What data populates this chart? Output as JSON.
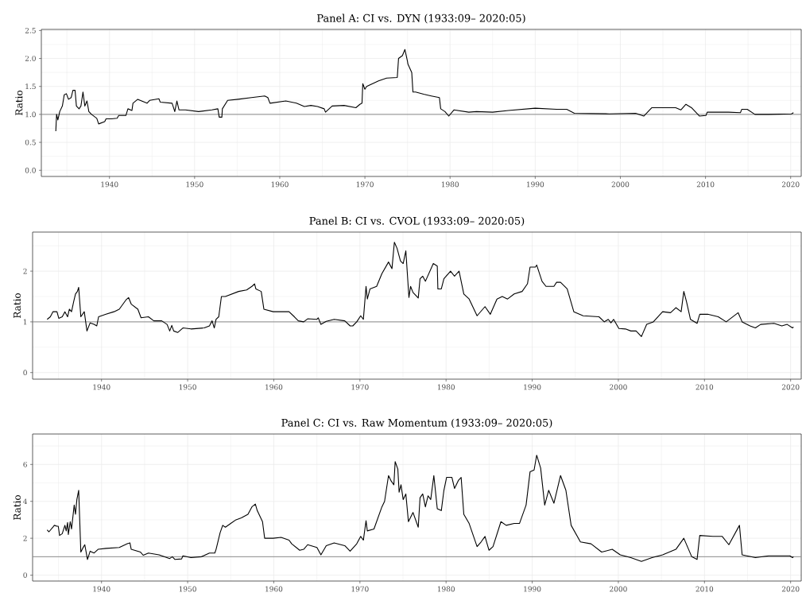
{
  "chart_data": [
    {
      "type": "line",
      "title": "Panel A: CI vs. DYN (1933:09– 2020:05)",
      "ylabel": "Ratio",
      "x": [
        1933.7,
        1933.79,
        1933.94,
        1934.16,
        1934.47,
        1934.69,
        1934.94,
        1935.19,
        1935.5,
        1935.71,
        1935.96,
        1936.12,
        1936.43,
        1936.65,
        1936.89,
        1937.11,
        1937.36,
        1937.58,
        1937.89,
        1938.51,
        1938.73,
        1939.44,
        1939.6,
        1940.22,
        1940.9,
        1941.09,
        1941.93,
        1942.17,
        1942.64,
        1942.76,
        1943.32,
        1944.41,
        1944.72,
        1945.81,
        1945.96,
        1947.36,
        1947.67,
        1947.92,
        1948.17,
        1948.91,
        1950.47,
        1952.02,
        1952.73,
        1952.89,
        1953.2,
        1953.26,
        1953.88,
        1955.12,
        1956.68,
        1958.23,
        1958.6,
        1958.85,
        1960.71,
        1961.96,
        1962.89,
        1963.66,
        1964.44,
        1965.22,
        1965.37,
        1966.15,
        1967.55,
        1968.94,
        1969.41,
        1969.66,
        1969.75,
        1970.0,
        1970.2,
        1971.6,
        1972.55,
        1973.8,
        1973.95,
        1974.4,
        1974.7,
        1975.0,
        1975.05,
        1975.5,
        1975.64,
        1975.95,
        1976.9,
        1977.8,
        1978.75,
        1978.9,
        1979.4,
        1979.85,
        1980.45,
        1982.2,
        1983.1,
        1985.0,
        1986.85,
        1990.0,
        1992.5,
        1993.7,
        1994.6,
        1998.7,
        2001.8,
        2002.75,
        2003.7,
        2006.5,
        2007.1,
        2007.7,
        2008.35,
        2009.3,
        2010.05,
        2010.2,
        2012.7,
        2014.1,
        2014.25,
        2014.9,
        2015.8,
        2017.4,
        2020.1,
        2020.33
      ],
      "series": [
        {
          "color": "#000000",
          "values": [
            0.7,
            1.0,
            0.9,
            1.05,
            1.15,
            1.35,
            1.37,
            1.27,
            1.3,
            1.43,
            1.43,
            1.15,
            1.1,
            1.15,
            1.4,
            1.15,
            1.24,
            1.05,
            1.0,
            0.93,
            0.83,
            0.87,
            0.92,
            0.92,
            0.93,
            0.98,
            0.98,
            1.1,
            1.07,
            1.2,
            1.27,
            1.2,
            1.25,
            1.28,
            1.22,
            1.2,
            1.05,
            1.24,
            1.08,
            1.08,
            1.05,
            1.08,
            1.1,
            0.95,
            0.95,
            1.1,
            1.25,
            1.27,
            1.3,
            1.33,
            1.3,
            1.2,
            1.24,
            1.2,
            1.14,
            1.16,
            1.14,
            1.1,
            1.04,
            1.15,
            1.16,
            1.12,
            1.18,
            1.2,
            1.55,
            1.45,
            1.5,
            1.6,
            1.65,
            1.66,
            2.0,
            2.05,
            2.16,
            1.95,
            1.9,
            1.75,
            1.4,
            1.4,
            1.36,
            1.33,
            1.3,
            1.1,
            1.05,
            0.97,
            1.08,
            1.04,
            1.05,
            1.04,
            1.07,
            1.11,
            1.09,
            1.09,
            1.02,
            1.01,
            1.02,
            0.97,
            1.12,
            1.12,
            1.08,
            1.18,
            1.12,
            0.97,
            0.98,
            1.04,
            1.04,
            1.03,
            1.09,
            1.09,
            1.0,
            1.0,
            1.01,
            1.03
          ]
        }
      ],
      "xlim": [
        1932.0,
        2021.24
      ],
      "ylim": [
        -0.11,
        2.52
      ],
      "xticks": [
        1940,
        1950,
        1960,
        1970,
        1980,
        1990,
        2000,
        2010,
        2020
      ],
      "yticks": [
        {
          "value": 0,
          "label": "0.0"
        },
        {
          "value": 0.5,
          "label": "0.5"
        },
        {
          "value": 1,
          "label": "1.0"
        },
        {
          "value": 1.5,
          "label": "1.5"
        },
        {
          "value": 2,
          "label": "2.0"
        },
        {
          "value": 2.5,
          "label": "2.5"
        }
      ],
      "grid": true,
      "ref_lines": [
        {
          "axis": "y",
          "value": 1,
          "color": "#8c8c8c"
        }
      ]
    },
    {
      "type": "line",
      "title": "Panel B: CI vs. CVOL (1933:09– 2020:05)",
      "ylabel": "Ratio",
      "x": [
        1933.69,
        1934.06,
        1934.36,
        1934.83,
        1935.04,
        1935.44,
        1935.75,
        1936.06,
        1936.27,
        1936.52,
        1936.77,
        1936.98,
        1937.2,
        1937.35,
        1937.6,
        1938.0,
        1938.31,
        1938.68,
        1939.14,
        1939.45,
        1939.66,
        1940.52,
        1941.45,
        1942.06,
        1942.83,
        1943.14,
        1943.45,
        1944.22,
        1944.59,
        1945.45,
        1946.07,
        1946.99,
        1947.61,
        1947.92,
        1948.16,
        1948.38,
        1948.84,
        1949.45,
        1950.38,
        1951.92,
        1952.53,
        1952.84,
        1953.09,
        1953.3,
        1953.61,
        1953.92,
        1954.38,
        1955.92,
        1956.85,
        1957.46,
        1957.77,
        1957.92,
        1958.54,
        1958.85,
        1959.93,
        1961.77,
        1962.39,
        1962.85,
        1963.47,
        1963.93,
        1965.01,
        1965.16,
        1965.47,
        1966.09,
        1967.01,
        1968.24,
        1968.86,
        1969.17,
        1969.63,
        1970.09,
        1970.4,
        1970.71,
        1970.86,
        1971.17,
        1971.94,
        1972.55,
        1973.32,
        1973.72,
        1974.0,
        1974.31,
        1974.71,
        1975.02,
        1975.33,
        1975.69,
        1975.88,
        1976.16,
        1976.77,
        1976.98,
        1977.29,
        1977.6,
        1978.52,
        1978.98,
        1979.05,
        1979.45,
        1979.75,
        1980.52,
        1980.98,
        1981.51,
        1982.06,
        1982.68,
        1983.6,
        1984.52,
        1985.14,
        1985.91,
        1986.52,
        1987.14,
        1987.91,
        1988.83,
        1989.45,
        1989.75,
        1990.37,
        1990.52,
        1991.14,
        1991.6,
        1992.52,
        1992.83,
        1993.29,
        1994.06,
        1994.83,
        1995.91,
        1997.75,
        1998.37,
        1998.83,
        1999.14,
        1999.45,
        2000.06,
        2000.83,
        2001.45,
        2002.06,
        2002.68,
        2003.29,
        2004.06,
        2005.14,
        2006.06,
        2006.68,
        2007.29,
        2007.6,
        2007.91,
        2008.37,
        2009.14,
        2009.45,
        2010.37,
        2011.6,
        2012.52,
        2013.91,
        2014.37,
        2015.29,
        2015.91,
        2016.52,
        2018.06,
        2018.98,
        2019.6,
        2020.22,
        2020.33
      ],
      "series": [
        {
          "color": "#000000",
          "values": [
            1.05,
            1.1,
            1.2,
            1.2,
            1.07,
            1.1,
            1.2,
            1.1,
            1.25,
            1.2,
            1.4,
            1.55,
            1.6,
            1.68,
            1.1,
            1.2,
            0.82,
            0.98,
            0.95,
            0.92,
            1.1,
            1.15,
            1.2,
            1.25,
            1.43,
            1.48,
            1.35,
            1.25,
            1.08,
            1.1,
            1.02,
            1.02,
            0.95,
            0.82,
            0.93,
            0.82,
            0.79,
            0.88,
            0.86,
            0.88,
            0.92,
            1.02,
            0.88,
            1.05,
            1.1,
            1.5,
            1.5,
            1.6,
            1.63,
            1.7,
            1.75,
            1.65,
            1.6,
            1.25,
            1.2,
            1.2,
            1.1,
            1.02,
            1.0,
            1.06,
            1.05,
            1.08,
            0.95,
            1.01,
            1.05,
            1.02,
            0.92,
            0.92,
            1.0,
            1.12,
            1.05,
            1.7,
            1.45,
            1.65,
            1.7,
            1.95,
            2.18,
            2.05,
            2.57,
            2.45,
            2.2,
            2.15,
            2.4,
            1.48,
            1.7,
            1.58,
            1.47,
            1.85,
            1.9,
            1.8,
            2.15,
            2.1,
            1.65,
            1.65,
            1.85,
            2.0,
            1.9,
            2.0,
            1.55,
            1.45,
            1.12,
            1.3,
            1.15,
            1.45,
            1.5,
            1.45,
            1.55,
            1.6,
            1.75,
            2.08,
            2.08,
            2.12,
            1.8,
            1.7,
            1.7,
            1.78,
            1.78,
            1.65,
            1.2,
            1.12,
            1.1,
            1.0,
            1.05,
            0.98,
            1.05,
            0.87,
            0.86,
            0.82,
            0.82,
            0.71,
            0.95,
            1.0,
            1.2,
            1.18,
            1.28,
            1.2,
            1.6,
            1.4,
            1.05,
            0.97,
            1.15,
            1.15,
            1.1,
            1.0,
            1.18,
            1.0,
            0.92,
            0.88,
            0.95,
            0.97,
            0.92,
            0.95,
            0.88,
            0.9
          ]
        }
      ],
      "xlim": [
        1932.0,
        2021.23
      ],
      "ylim": [
        -0.13,
        2.77
      ],
      "xticks": [
        1940,
        1950,
        1960,
        1970,
        1980,
        1990,
        2000,
        2010,
        2020
      ],
      "yticks": [
        0,
        1,
        2
      ],
      "grid": true,
      "ref_lines": [
        {
          "axis": "y",
          "value": 1,
          "color": "#8c8c8c"
        }
      ]
    },
    {
      "type": "line",
      "title": "Panel C: CI vs. Raw Momentum (1933:09– 2020:05)",
      "ylabel": "Ratio",
      "x": [
        1933.69,
        1933.9,
        1934.36,
        1934.52,
        1934.83,
        1934.98,
        1935.13,
        1935.44,
        1935.75,
        1935.9,
        1936.06,
        1936.15,
        1936.37,
        1936.52,
        1936.83,
        1936.98,
        1937.14,
        1937.35,
        1937.6,
        1937.81,
        1938.06,
        1938.37,
        1938.68,
        1939.14,
        1939.6,
        1940.52,
        1942.06,
        1942.99,
        1943.3,
        1943.45,
        1944.53,
        1944.84,
        1945.45,
        1946.68,
        1947.92,
        1948.22,
        1948.53,
        1949.3,
        1949.45,
        1950.38,
        1951.61,
        1952.53,
        1953.15,
        1953.3,
        1953.77,
        1954.07,
        1954.38,
        1955.0,
        1955.61,
        1956.23,
        1957.0,
        1957.46,
        1957.86,
        1958.08,
        1958.69,
        1958.94,
        1959.93,
        1960.85,
        1961.77,
        1962.08,
        1963.01,
        1963.47,
        1963.93,
        1965.01,
        1965.47,
        1966.09,
        1967.01,
        1968.24,
        1968.86,
        1969.63,
        1970.09,
        1970.4,
        1970.71,
        1970.86,
        1971.63,
        1972.55,
        1972.86,
        1973.32,
        1973.63,
        1973.94,
        1974.09,
        1974.4,
        1974.55,
        1974.77,
        1975.02,
        1975.33,
        1975.63,
        1976.16,
        1976.77,
        1976.98,
        1977.29,
        1977.6,
        1977.91,
        1978.22,
        1978.58,
        1978.98,
        1979.45,
        1979.75,
        1980.06,
        1980.68,
        1980.98,
        1981.45,
        1981.75,
        1982.06,
        1982.68,
        1983.6,
        1984.06,
        1984.52,
        1984.98,
        1985.45,
        1986.37,
        1986.98,
        1987.91,
        1988.52,
        1989.29,
        1989.75,
        1990.22,
        1990.52,
        1990.98,
        1991.45,
        1991.91,
        1992.52,
        1993.29,
        1993.91,
        1994.52,
        1995.6,
        1996.83,
        1998.06,
        1999.29,
        2000.22,
        2001.45,
        2002.68,
        2003.91,
        2005.14,
        2006.68,
        2007.6,
        2008.52,
        2009.14,
        2009.45,
        2010.98,
        2012.06,
        2012.83,
        2014.06,
        2014.37,
        2015.91,
        2017.45,
        2019.91,
        2020.22,
        2020.33
      ],
      "series": [
        {
          "color": "#000000",
          "values": [
            2.45,
            2.35,
            2.6,
            2.7,
            2.65,
            2.65,
            2.15,
            2.25,
            2.7,
            2.4,
            2.85,
            2.2,
            2.9,
            2.5,
            3.8,
            3.3,
            4.1,
            4.6,
            1.25,
            1.45,
            1.65,
            0.85,
            1.3,
            1.2,
            1.4,
            1.45,
            1.5,
            1.7,
            1.75,
            1.4,
            1.25,
            1.08,
            1.2,
            1.1,
            0.9,
            1.0,
            0.85,
            0.88,
            1.05,
            0.95,
            1.0,
            1.2,
            1.2,
            1.4,
            2.3,
            2.7,
            2.6,
            2.8,
            3.0,
            3.1,
            3.3,
            3.7,
            3.85,
            3.5,
            2.9,
            2.0,
            2.0,
            2.05,
            1.9,
            1.7,
            1.35,
            1.4,
            1.65,
            1.5,
            1.1,
            1.6,
            1.75,
            1.6,
            1.3,
            1.7,
            2.1,
            1.9,
            2.95,
            2.4,
            2.5,
            3.7,
            4.0,
            5.4,
            5.1,
            4.9,
            6.15,
            5.75,
            4.5,
            4.9,
            4.1,
            4.4,
            2.9,
            3.4,
            2.6,
            4.2,
            4.4,
            3.7,
            4.3,
            4.1,
            5.4,
            3.6,
            3.5,
            4.6,
            5.3,
            5.3,
            4.7,
            5.15,
            5.3,
            3.3,
            2.8,
            1.55,
            1.8,
            2.1,
            1.35,
            1.55,
            2.9,
            2.7,
            2.8,
            2.8,
            3.8,
            5.6,
            5.7,
            6.5,
            5.8,
            3.8,
            4.6,
            3.9,
            5.4,
            4.6,
            2.7,
            1.8,
            1.7,
            1.25,
            1.4,
            1.1,
            0.95,
            0.75,
            0.95,
            1.1,
            1.4,
            2.0,
            1.0,
            0.85,
            2.15,
            2.1,
            2.1,
            1.65,
            2.7,
            1.1,
            0.95,
            1.05,
            1.05,
            0.95,
            1.0
          ]
        }
      ],
      "xlim": [
        1932.0,
        2021.23
      ],
      "ylim": [
        -0.32,
        7.65
      ],
      "xticks": [
        1940,
        1950,
        1960,
        1970,
        1980,
        1990,
        2000,
        2010,
        2020
      ],
      "yticks": [
        0,
        2,
        4,
        6
      ],
      "grid": true,
      "ref_lines": [
        {
          "axis": "y",
          "value": 1,
          "color": "#8c8c8c"
        }
      ]
    }
  ]
}
